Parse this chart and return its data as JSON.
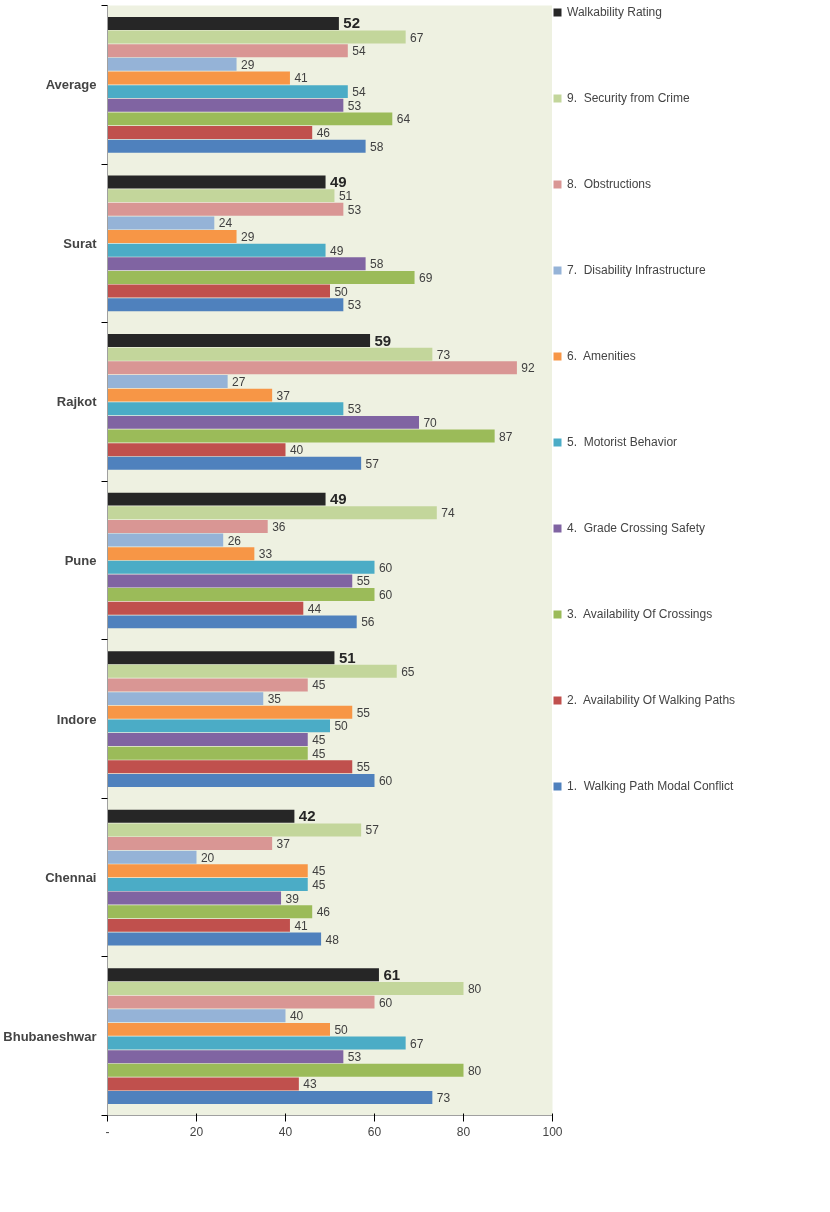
{
  "chart_data": {
    "type": "bar",
    "orientation": "horizontal",
    "categories": [
      "Average",
      "Surat",
      "Rajkot",
      "Pune",
      "Indore",
      "Chennai",
      "Bhubaneshwar"
    ],
    "series": [
      {
        "name": "Walkability Rating",
        "color": "#262626",
        "values": [
          52,
          49,
          59,
          49,
          51,
          42,
          61
        ]
      },
      {
        "name": "9.  Security from Crime",
        "color": "#c3d69b",
        "values": [
          67,
          51,
          73,
          74,
          65,
          57,
          80
        ]
      },
      {
        "name": "8.  Obstructions",
        "color": "#d99694",
        "values": [
          54,
          53,
          92,
          36,
          45,
          37,
          60
        ]
      },
      {
        "name": "7.  Disability Infrastructure",
        "color": "#95b3d7",
        "values": [
          29,
          24,
          27,
          26,
          35,
          20,
          40
        ]
      },
      {
        "name": "6.  Amenities",
        "color": "#f79646",
        "values": [
          41,
          29,
          37,
          33,
          55,
          45,
          50
        ]
      },
      {
        "name": "5.  Motorist Behavior",
        "color": "#4bacc6",
        "values": [
          54,
          49,
          53,
          60,
          50,
          45,
          67
        ]
      },
      {
        "name": "4.  Grade Crossing Safety",
        "color": "#8064a2",
        "values": [
          53,
          58,
          70,
          55,
          45,
          39,
          53
        ]
      },
      {
        "name": "3.  Availability Of Crossings",
        "color": "#9bbb59",
        "values": [
          64,
          69,
          87,
          60,
          45,
          46,
          80
        ]
      },
      {
        "name": "2.  Availability Of Walking Paths",
        "color": "#c0504d",
        "values": [
          46,
          50,
          40,
          44,
          55,
          41,
          43
        ]
      },
      {
        "name": "1.  Walking Path Modal Conflict",
        "color": "#4f81bd",
        "values": [
          58,
          53,
          57,
          56,
          60,
          48,
          73
        ]
      }
    ],
    "xlim": [
      0,
      100
    ],
    "xticks": [
      {
        "value": 0,
        "label": "-"
      },
      20,
      40,
      60,
      80,
      100
    ],
    "data_labels": true,
    "legend": "right",
    "grid": false
  }
}
